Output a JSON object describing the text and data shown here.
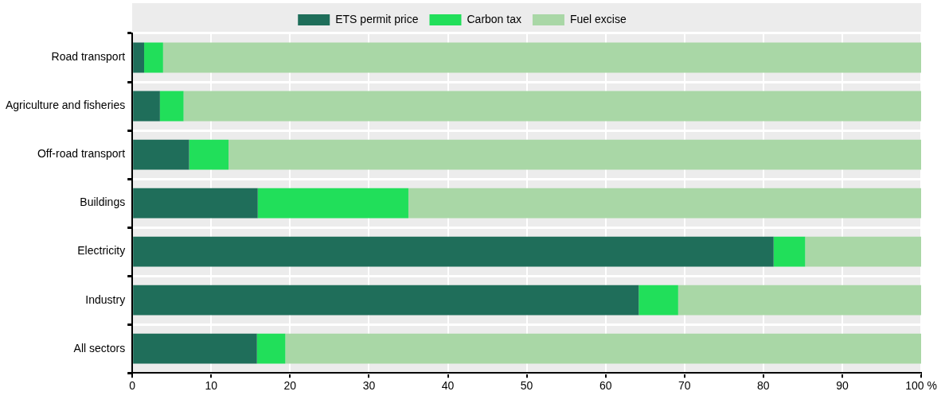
{
  "chart_data": {
    "type": "bar",
    "orientation": "horizontal",
    "stacked": true,
    "categories": [
      "Road transport",
      "Agriculture and fisheries",
      "Off-road transport",
      "Buildings",
      "Electricity",
      "Industry",
      "All sectors"
    ],
    "series": [
      {
        "name": "ETS permit price",
        "color": "#1f6e5a",
        "values": [
          1.5,
          3.5,
          7.2,
          15.9,
          81.3,
          64.2,
          15.8
        ]
      },
      {
        "name": "Carbon tax",
        "color": "#21df5a",
        "values": [
          2.4,
          3.0,
          5.0,
          19.1,
          4.0,
          5.0,
          3.6
        ]
      },
      {
        "name": "Fuel excise",
        "color": "#a9d7a6",
        "values": [
          96.1,
          93.5,
          87.8,
          65.0,
          14.7,
          30.8,
          80.6
        ]
      }
    ],
    "xlim": [
      0,
      100
    ],
    "xticks": [
      0,
      10,
      20,
      30,
      40,
      50,
      60,
      70,
      80,
      90,
      {
        "value": 100,
        "label": "100 %"
      }
    ],
    "grid": true,
    "legend": "top"
  }
}
